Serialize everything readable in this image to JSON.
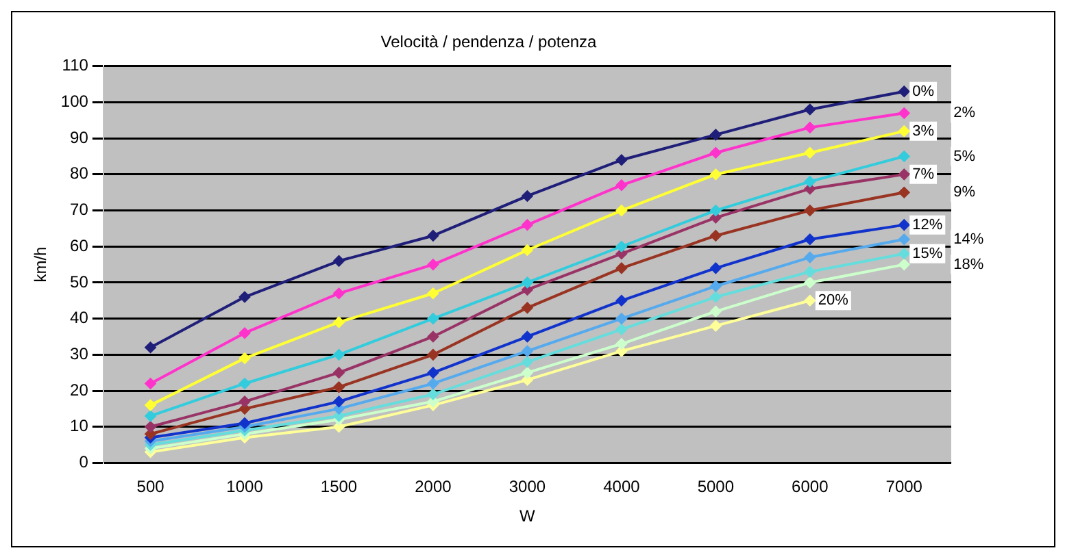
{
  "chart_data": {
    "type": "line",
    "title": "Velocità / pendenza / potenza",
    "xlabel": "W",
    "ylabel": "km/h",
    "categories": [
      "500",
      "1000",
      "1500",
      "2000",
      "3000",
      "4000",
      "5000",
      "6000",
      "7000"
    ],
    "ylim": [
      0,
      110
    ],
    "yticks": [
      0,
      10,
      20,
      30,
      40,
      50,
      60,
      70,
      80,
      90,
      100,
      110
    ],
    "grid": "y",
    "legend": false,
    "marker": "diamond",
    "series": [
      {
        "name": "0%",
        "color": "#1f1f7a",
        "values": [
          32,
          46,
          56,
          63,
          74,
          84,
          91,
          98,
          103
        ]
      },
      {
        "name": "2%",
        "color": "#ff33cc",
        "values": [
          22,
          36,
          47,
          55,
          66,
          77,
          86,
          93,
          97
        ]
      },
      {
        "name": "3%",
        "color": "#ffff33",
        "values": [
          16,
          29,
          39,
          47,
          59,
          70,
          80,
          86,
          92
        ]
      },
      {
        "name": "5%",
        "color": "#33ccdd",
        "values": [
          13,
          22,
          30,
          40,
          50,
          60,
          70,
          78,
          85
        ]
      },
      {
        "name": "7%",
        "color": "#993366",
        "values": [
          10,
          17,
          25,
          35,
          48,
          58,
          68,
          76,
          80
        ]
      },
      {
        "name": "9%",
        "color": "#993322",
        "values": [
          8,
          15,
          21,
          30,
          43,
          54,
          63,
          70,
          75
        ]
      },
      {
        "name": "12%",
        "color": "#1133cc",
        "values": [
          7,
          11,
          17,
          25,
          35,
          45,
          54,
          62,
          66
        ]
      },
      {
        "name": "14%",
        "color": "#55aaee",
        "values": [
          6,
          10,
          15,
          22,
          31,
          40,
          49,
          57,
          62
        ]
      },
      {
        "name": "15%",
        "color": "#66dddd",
        "values": [
          5,
          9,
          13,
          19,
          28,
          37,
          46,
          53,
          58
        ]
      },
      {
        "name": "18%",
        "color": "#ccffcc",
        "values": [
          4,
          8,
          12,
          17,
          25,
          33,
          42,
          50,
          55
        ]
      },
      {
        "name": "20%",
        "color": "#ffff99",
        "values": [
          3,
          7,
          10,
          16,
          23,
          31,
          38,
          45,
          null
        ]
      }
    ]
  }
}
